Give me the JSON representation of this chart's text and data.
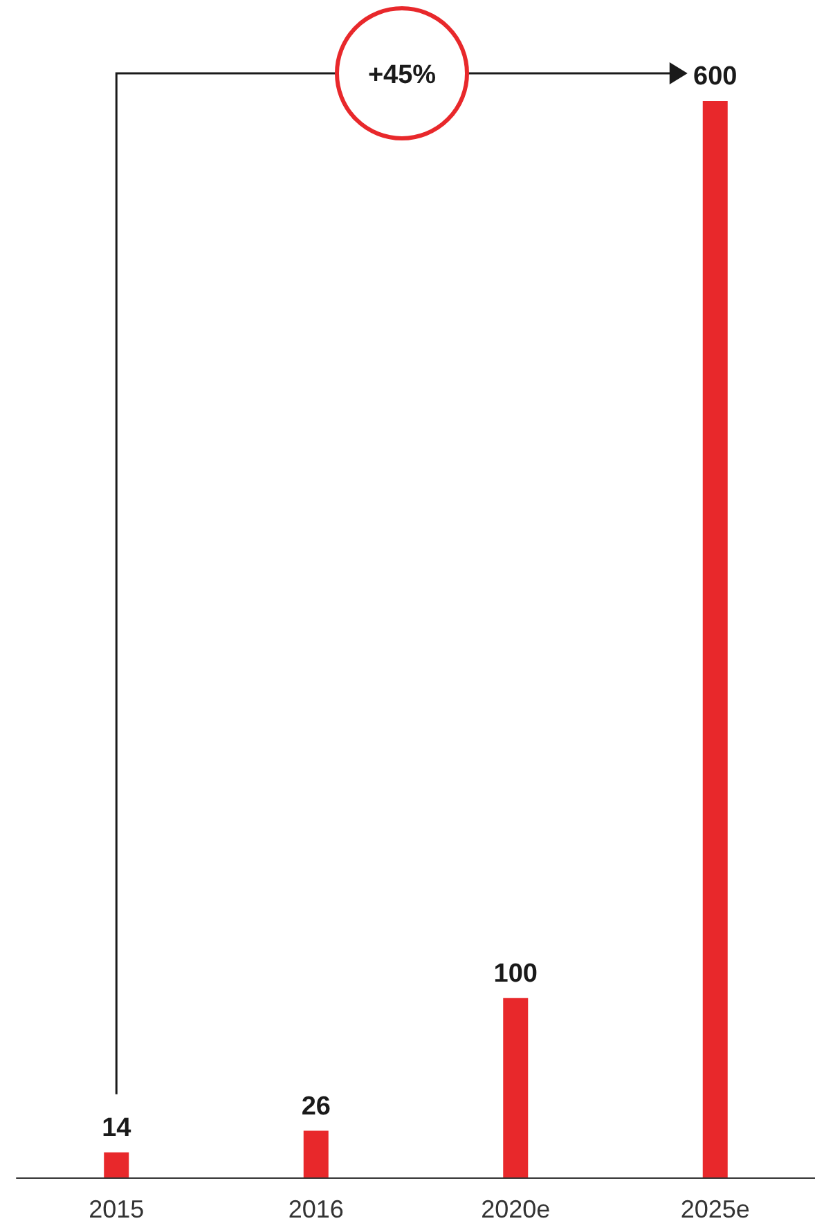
{
  "chart_data": {
    "type": "bar",
    "categories": [
      "2015",
      "2016",
      "2020e",
      "2025e"
    ],
    "values": [
      14,
      26,
      100,
      600
    ],
    "color": "#e8282b",
    "data_labels": true,
    "annotations": [
      "+45%"
    ]
  }
}
